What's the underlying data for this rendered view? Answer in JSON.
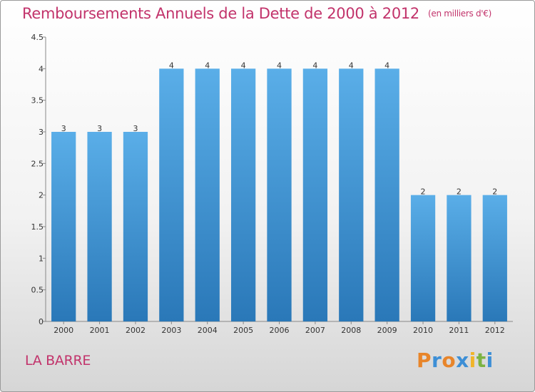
{
  "header": {
    "title": "Remboursements Annuels de la Dette de 2000 à 2012",
    "unit": "(en milliers d'€)"
  },
  "footer": {
    "commune": "LA BARRE",
    "logo_letters": [
      {
        "char": "P",
        "color": "#e8852a"
      },
      {
        "char": "r",
        "color": "#3d8fd6"
      },
      {
        "char": "o",
        "color": "#e8852a"
      },
      {
        "char": "x",
        "color": "#3d8fd6"
      },
      {
        "char": "i",
        "color": "#f0b429"
      },
      {
        "char": "t",
        "color": "#7cb342"
      },
      {
        "char": "i",
        "color": "#3d8fd6"
      }
    ]
  },
  "chart_data": {
    "type": "bar",
    "title": "Remboursements Annuels de la Dette de 2000 à 2012",
    "subtitle": "(en milliers d'€)",
    "categories": [
      "2000",
      "2001",
      "2002",
      "2003",
      "2004",
      "2005",
      "2006",
      "2007",
      "2008",
      "2009",
      "2010",
      "2011",
      "2012"
    ],
    "values": [
      3,
      3,
      3,
      4,
      4,
      4,
      4,
      4,
      4,
      4,
      2,
      2,
      2
    ],
    "data_labels": [
      "3",
      "3",
      "3",
      "4",
      "4",
      "4",
      "4",
      "4",
      "4",
      "4",
      "2",
      "2",
      "2"
    ],
    "yticks": [
      0,
      0.5,
      1,
      1.5,
      2,
      2.5,
      3,
      3.5,
      4,
      4.5
    ],
    "ytick_labels": [
      "0",
      "0.5",
      "1",
      "1.5",
      "2",
      "2.5",
      "3",
      "3.5",
      "4",
      "4.5"
    ],
    "ylim": [
      0,
      4.5
    ],
    "grid": false,
    "colors": {
      "bar_top": "#5aaee8",
      "bar_bottom": "#2a78b8",
      "axis": "#888888"
    }
  }
}
